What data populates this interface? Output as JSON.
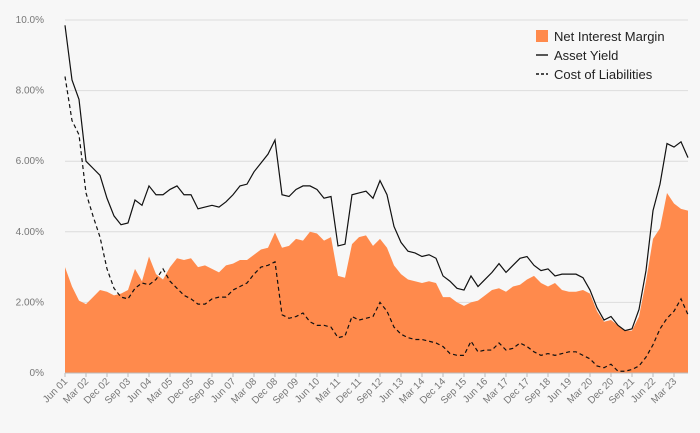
{
  "colors": {
    "nim_fill": "#ff8a4c",
    "asset_line": "#111111",
    "cost_line": "#111111",
    "grid": "#dcdcdc",
    "axis": "#bbbbbb",
    "background": "#f7f7f7"
  },
  "legend": {
    "items": [
      {
        "label": "Net Interest Margin",
        "kind": "swatch"
      },
      {
        "label": "Asset Yield",
        "kind": "solid"
      },
      {
        "label": "Cost of Liabilities",
        "kind": "dashed"
      }
    ]
  },
  "chart_data": {
    "type": "area",
    "title": "",
    "xlabel": "",
    "ylabel": "",
    "ylim": [
      0,
      10
    ],
    "grid": true,
    "legend_position": "top-right",
    "y_ticks": [
      "0%",
      "2.00%",
      "4.00%",
      "6.00%",
      "8.00%",
      "10.0%"
    ],
    "y_tick_values": [
      0,
      2,
      4,
      6,
      8,
      10
    ],
    "x_tick_labels": [
      "Jun 01",
      "Mar 02",
      "Dec 02",
      "Sep 03",
      "Jun 04",
      "Mar 05",
      "Dec 05",
      "Sep 06",
      "Jun 07",
      "Mar 08",
      "Dec 08",
      "Sep 09",
      "Jun 10",
      "Mar 11",
      "Dec 11",
      "Sep 12",
      "Jun 13",
      "Mar 14",
      "Dec 14",
      "Sep 15",
      "Jun 16",
      "Mar 17",
      "Dec 17",
      "Sep 18",
      "Jun 19",
      "Mar 20",
      "Dec 20",
      "Sep 21",
      "Jun 22",
      "Mar 23"
    ],
    "x_tick_indices": [
      0,
      3,
      6,
      9,
      12,
      15,
      18,
      21,
      24,
      27,
      30,
      33,
      36,
      39,
      42,
      45,
      48,
      51,
      54,
      57,
      60,
      63,
      66,
      69,
      72,
      75,
      78,
      81,
      84,
      87
    ],
    "x_count": 90,
    "series": [
      {
        "name": "Net Interest Margin",
        "style": "area",
        "values": [
          3.0,
          2.45,
          2.05,
          1.95,
          2.15,
          2.35,
          2.3,
          2.2,
          2.25,
          2.35,
          2.95,
          2.6,
          3.3,
          2.8,
          2.65,
          3.0,
          3.25,
          3.2,
          3.25,
          3.0,
          3.05,
          2.95,
          2.85,
          3.05,
          3.1,
          3.2,
          3.2,
          3.35,
          3.5,
          3.55,
          3.98,
          3.55,
          3.6,
          3.8,
          3.75,
          4.0,
          3.95,
          3.75,
          3.85,
          2.75,
          2.7,
          3.65,
          3.85,
          3.9,
          3.6,
          3.8,
          3.55,
          3.05,
          2.8,
          2.65,
          2.6,
          2.55,
          2.6,
          2.55,
          2.15,
          2.15,
          2.0,
          1.9,
          2.0,
          2.05,
          2.2,
          2.35,
          2.4,
          2.3,
          2.45,
          2.5,
          2.65,
          2.75,
          2.55,
          2.45,
          2.55,
          2.35,
          2.3,
          2.3,
          2.35,
          2.25,
          1.75,
          1.45,
          1.5,
          1.35,
          1.2,
          1.2,
          1.6,
          2.6,
          3.8,
          4.1,
          5.1,
          4.8,
          4.65,
          4.6
        ]
      },
      {
        "name": "Asset Yield",
        "style": "solid",
        "values": [
          9.85,
          8.3,
          7.75,
          6.0,
          5.8,
          5.6,
          4.95,
          4.45,
          4.2,
          4.25,
          4.9,
          4.75,
          5.3,
          5.05,
          5.05,
          5.2,
          5.3,
          5.05,
          5.05,
          4.65,
          4.7,
          4.75,
          4.7,
          4.85,
          5.05,
          5.3,
          5.35,
          5.7,
          5.95,
          6.2,
          6.6,
          5.05,
          5.0,
          5.2,
          5.3,
          5.3,
          5.2,
          4.95,
          5.0,
          3.6,
          3.65,
          5.05,
          5.1,
          5.15,
          4.95,
          5.45,
          5.05,
          4.15,
          3.7,
          3.45,
          3.4,
          3.3,
          3.35,
          3.25,
          2.75,
          2.6,
          2.4,
          2.35,
          2.75,
          2.45,
          2.65,
          2.85,
          3.1,
          2.85,
          3.05,
          3.25,
          3.3,
          3.05,
          2.9,
          2.95,
          2.75,
          2.8,
          2.8,
          2.8,
          2.7,
          2.35,
          1.85,
          1.5,
          1.6,
          1.35,
          1.2,
          1.25,
          1.8,
          2.9,
          4.6,
          5.35,
          6.5,
          6.4,
          6.55,
          6.1
        ]
      },
      {
        "name": "Cost of Liabilities",
        "style": "dashed",
        "values": [
          8.4,
          7.15,
          6.75,
          5.1,
          4.45,
          3.85,
          2.95,
          2.4,
          2.15,
          2.1,
          2.4,
          2.55,
          2.5,
          2.65,
          2.95,
          2.6,
          2.4,
          2.2,
          2.1,
          1.95,
          1.95,
          2.1,
          2.15,
          2.15,
          2.35,
          2.45,
          2.55,
          2.8,
          3.0,
          3.05,
          3.15,
          1.65,
          1.55,
          1.6,
          1.7,
          1.45,
          1.35,
          1.35,
          1.3,
          1.0,
          1.05,
          1.6,
          1.5,
          1.55,
          1.6,
          2.0,
          1.75,
          1.3,
          1.1,
          1.0,
          0.95,
          0.95,
          0.9,
          0.85,
          0.75,
          0.55,
          0.5,
          0.5,
          0.9,
          0.6,
          0.65,
          0.65,
          0.85,
          0.65,
          0.7,
          0.85,
          0.75,
          0.6,
          0.5,
          0.55,
          0.5,
          0.55,
          0.6,
          0.6,
          0.5,
          0.4,
          0.2,
          0.15,
          0.25,
          0.05,
          0.05,
          0.1,
          0.2,
          0.45,
          0.8,
          1.25,
          1.55,
          1.75,
          2.1,
          1.65
        ]
      }
    ]
  }
}
